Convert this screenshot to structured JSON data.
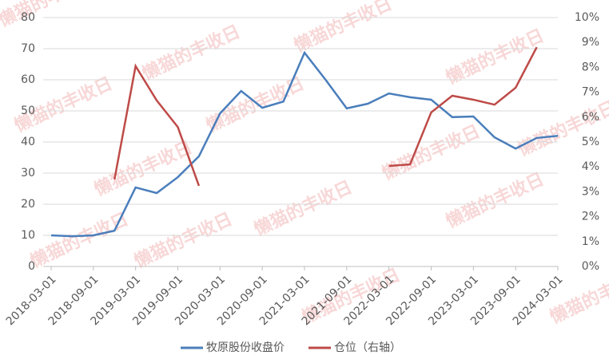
{
  "chart_data": {
    "type": "line",
    "watermark": "懒猫的丰收日",
    "categories": [
      "2018-03-01",
      null,
      "2018-09-01",
      null,
      "2019-03-01",
      null,
      "2019-09-01",
      null,
      "2020-03-01",
      null,
      "2020-09-01",
      null,
      "2021-03-01",
      null,
      "2021-09-01",
      null,
      "2022-03-01",
      null,
      "2022-09-01",
      null,
      "2023-03-01",
      null,
      "2023-09-01",
      null,
      "2024-03-01"
    ],
    "series": [
      {
        "name": "牧原股份收盘价",
        "color": "#4a7ebb",
        "values": [
          10.0,
          9.7,
          10.0,
          11.5,
          25.4,
          23.6,
          28.7,
          35.4,
          49.2,
          56.4,
          51.0,
          53.0,
          68.7,
          60.0,
          50.8,
          52.3,
          55.6,
          54.4,
          53.6,
          48.0,
          48.2,
          41.5,
          37.9,
          41.3,
          42.0
        ]
      },
      {
        "name": "仓位（右轴）",
        "color": "#be4b48",
        "axis": "y2",
        "values": [
          null,
          null,
          null,
          3.5,
          8.05,
          6.67,
          5.6,
          3.24,
          null,
          null,
          null,
          null,
          null,
          null,
          null,
          null,
          4.04,
          4.1,
          6.19,
          6.86,
          6.7,
          6.5,
          7.18,
          8.81,
          null
        ]
      }
    ],
    "ylim": [
      0,
      80
    ],
    "yticks": [
      0,
      10,
      20,
      30,
      40,
      50,
      60,
      70,
      80
    ],
    "y2lim": [
      0,
      10
    ],
    "y2ticks": [
      {
        "value": 0,
        "label": "0%"
      },
      {
        "value": 1,
        "label": "1%"
      },
      {
        "value": 2,
        "label": "2%"
      },
      {
        "value": 3,
        "label": "3%"
      },
      {
        "value": 4,
        "label": "4%"
      },
      {
        "value": 5,
        "label": "5%"
      },
      {
        "value": 6,
        "label": "6%"
      },
      {
        "value": 7,
        "label": "7%"
      },
      {
        "value": 8,
        "label": "8%"
      },
      {
        "value": 9,
        "label": "9%"
      },
      {
        "value": 10,
        "label": "10%"
      }
    ],
    "grid": true
  }
}
